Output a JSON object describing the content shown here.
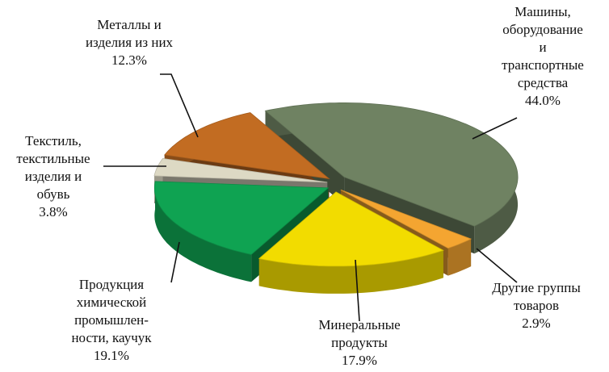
{
  "chart_data": {
    "type": "pie3d",
    "categories": [
      "Машины,\nоборудование\nи\nтранспортные\nсредства",
      "Другие группы\nтоваров",
      "Минеральные\nпродукты",
      "Продукция\nхимической\nпромышлен-\nности, каучук",
      "Текстиль,\nтекстильные\nизделия и\nобувь",
      "Металлы и\nизделия из них"
    ],
    "values": [
      44.0,
      2.9,
      17.9,
      19.1,
      3.8,
      12.3
    ],
    "value_labels": [
      "44.0%",
      "2.9%",
      "17.9%",
      "19.1%",
      "3.8%",
      "12.3%"
    ],
    "colors": [
      "#6f8262",
      "#f4a531",
      "#f2dc00",
      "#0fa352",
      "#ddd9c4",
      "#c26c22"
    ]
  }
}
